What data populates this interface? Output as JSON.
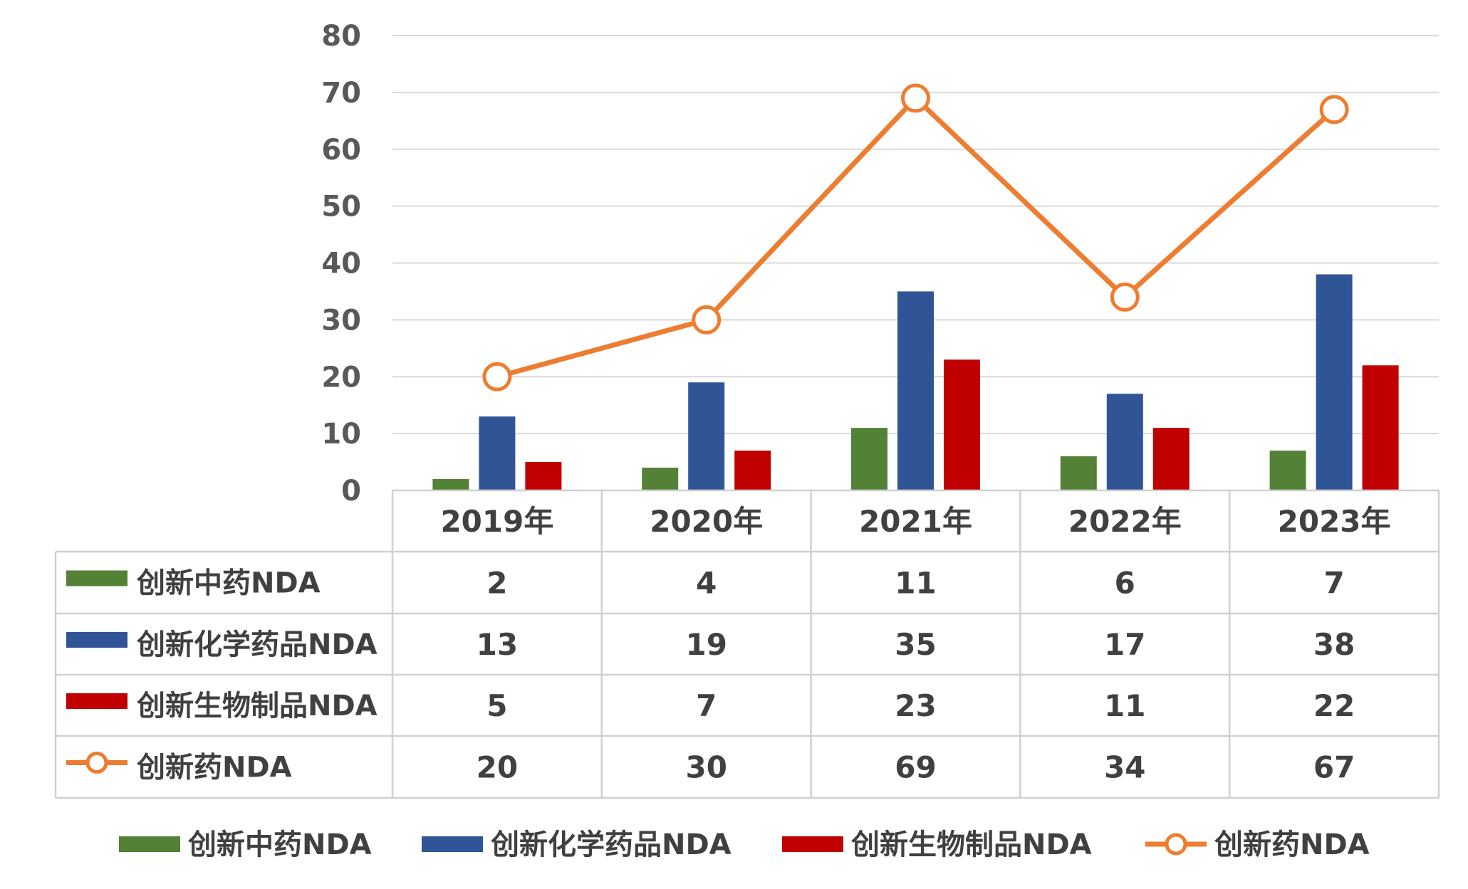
{
  "chart_data": {
    "type": "bar",
    "categories": [
      "2019年",
      "2020年",
      "2021年",
      "2022年",
      "2023年"
    ],
    "ylim": [
      0,
      80
    ],
    "yticks": [
      0,
      10,
      20,
      30,
      40,
      50,
      60,
      70,
      80
    ],
    "grid": true,
    "legend_position": "bottom",
    "data_table": true,
    "series": [
      {
        "name": "创新中药NDA",
        "kind": "bar",
        "color": "#538135",
        "values": [
          2,
          4,
          11,
          6,
          7
        ]
      },
      {
        "name": "创新化学药品NDA",
        "kind": "bar",
        "color": "#2F5597",
        "values": [
          13,
          19,
          35,
          17,
          38
        ]
      },
      {
        "name": "创新生物制品NDA",
        "kind": "bar",
        "color": "#C00000",
        "values": [
          5,
          7,
          23,
          11,
          22
        ]
      },
      {
        "name": "创新药NDA",
        "kind": "line",
        "color": "#ED7D31",
        "values": [
          20,
          30,
          69,
          34,
          67
        ]
      }
    ]
  }
}
